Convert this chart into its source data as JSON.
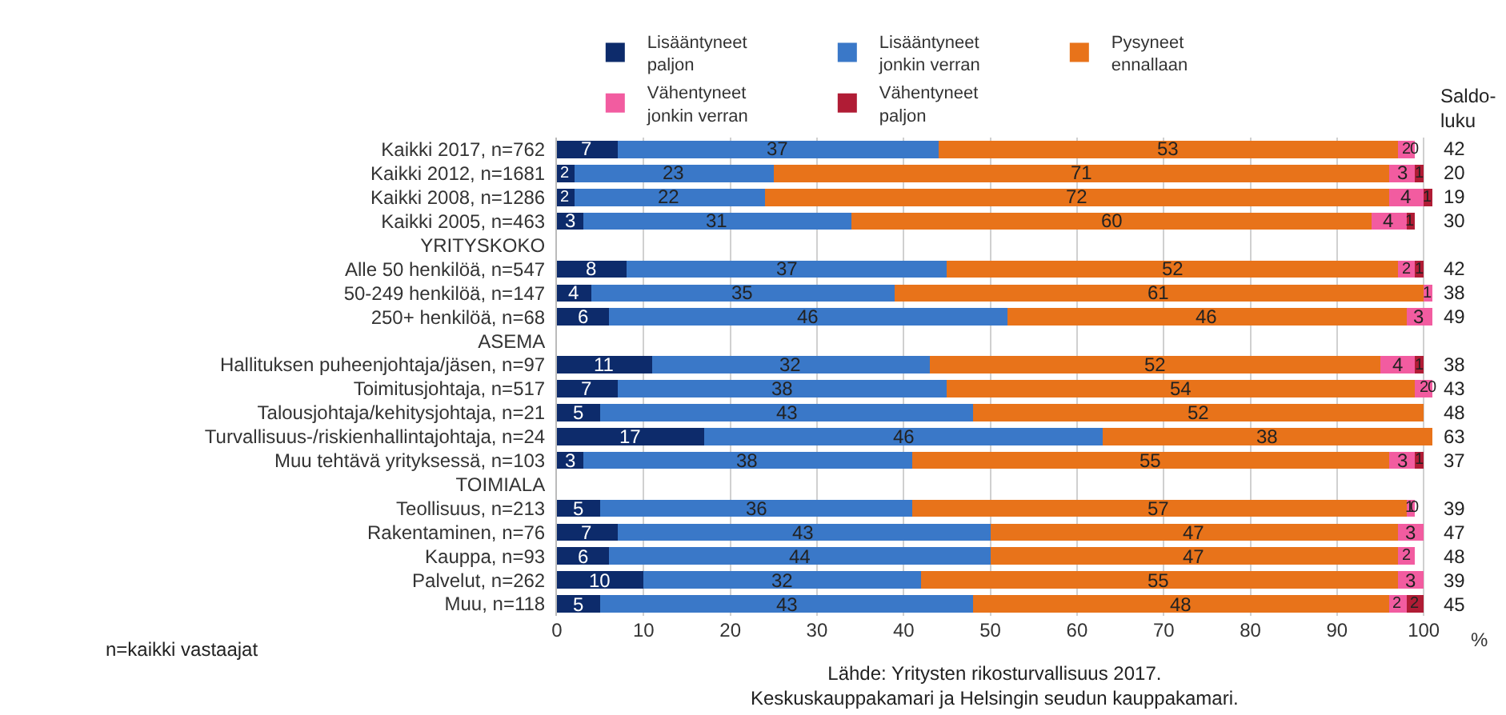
{
  "chart_data": {
    "type": "bar",
    "orientation": "horizontal",
    "stacked": true,
    "categories": [
      "Kaikki 2017, n=762",
      "Kaikki 2012, n=1681",
      "Kaikki 2008, n=1286",
      "Kaikki 2005, n=463",
      "YRITYSKOKO",
      "Alle 50 henkilöä, n=547",
      "50-249 henkilöä, n=147",
      "250+ henkilöä, n=68",
      "ASEMA",
      "Hallituksen puheenjohtaja/jäsen, n=97",
      "Toimitusjohtaja, n=517",
      "Talousjohtaja/kehitysjohtaja, n=21",
      "Turvallisuus-/riskienhallintajohtaja, n=24",
      "Muu tehtävä yrityksessä, n=103",
      "TOIMIALA",
      "Teollisuus, n=213",
      "Rakentaminen, n=76",
      "Kauppa, n=93",
      "Palvelut, n=262",
      "Muu, n=118"
    ],
    "series": [
      {
        "name": "Lisääntyneet paljon",
        "color": "#0d2b6b",
        "values": [
          7,
          2,
          2,
          3,
          null,
          8,
          4,
          6,
          null,
          11,
          7,
          5,
          17,
          3,
          null,
          5,
          7,
          6,
          10,
          5
        ],
        "value_labels": [
          "7",
          "2",
          "2",
          "3",
          null,
          "8",
          "4",
          "6",
          null,
          "11",
          "7",
          "5",
          "17",
          "3",
          null,
          "5",
          "7",
          "6",
          "10",
          "5"
        ]
      },
      {
        "name": "Lisääntyneet jonkin verran",
        "color": "#3a78c8",
        "values": [
          37,
          23,
          22,
          31,
          null,
          37,
          35,
          46,
          null,
          32,
          38,
          43,
          46,
          38,
          null,
          36,
          43,
          44,
          32,
          43
        ],
        "value_labels": [
          "37",
          "23",
          "22",
          "31",
          null,
          "37",
          "35",
          "46",
          null,
          "32",
          "38",
          "43",
          "46",
          "38",
          null,
          "36",
          "43",
          "44",
          "32",
          "43"
        ]
      },
      {
        "name": "Pysyneet ennallaan",
        "color": "#e8731a",
        "values": [
          53,
          71,
          72,
          60,
          null,
          52,
          61,
          46,
          null,
          52,
          54,
          52,
          38,
          55,
          null,
          57,
          47,
          47,
          55,
          48
        ],
        "value_labels": [
          "53",
          "71",
          "72",
          "60",
          null,
          "52",
          "61",
          "46",
          null,
          "52",
          "54",
          "52",
          "38",
          "55",
          null,
          "57",
          "47",
          "47",
          "55",
          "48"
        ]
      },
      {
        "name": "Vähentyneet jonkin verran",
        "color": "#f25ca0",
        "values": [
          2,
          3,
          4,
          4,
          null,
          2,
          1,
          3,
          null,
          4,
          2,
          0,
          0,
          3,
          null,
          1,
          3,
          2,
          3,
          2
        ],
        "value_labels": [
          "2",
          "3",
          "4",
          "4",
          null,
          "2",
          "1",
          "3",
          null,
          "4",
          "2",
          null,
          null,
          "3",
          null,
          "1",
          "3",
          "2",
          "3",
          "2"
        ]
      },
      {
        "name": "Vähentyneet paljon",
        "color": "#b01c35",
        "values": [
          0,
          1,
          1,
          1,
          null,
          1,
          0,
          0,
          null,
          1,
          0,
          0,
          0,
          1,
          null,
          0,
          0,
          0,
          0,
          2
        ],
        "value_labels": [
          "0",
          "1",
          "1",
          "1",
          null,
          "1",
          null,
          null,
          null,
          "1",
          "0",
          null,
          null,
          "1",
          null,
          "0",
          null,
          null,
          null,
          "2"
        ]
      }
    ],
    "xlim": [
      0,
      101
    ],
    "xticks": [
      0,
      10,
      20,
      30,
      40,
      50,
      60,
      70,
      80,
      90,
      100
    ],
    "xlabel": "%",
    "grid": "x",
    "legend": "top",
    "annotations": [
      "Saldo-\nluku",
      "n=kaikki vastaajat",
      "Lähde: Yritysten rikosturvallisuus 2017.\nKeskuskauppakamari ja Helsingin seudun kauppakamari.",
      "42",
      "20",
      "19",
      "30",
      "42",
      "38",
      "49",
      "38",
      "43",
      "48",
      "63",
      "37",
      "39",
      "47",
      "48",
      "39",
      "45"
    ]
  }
}
